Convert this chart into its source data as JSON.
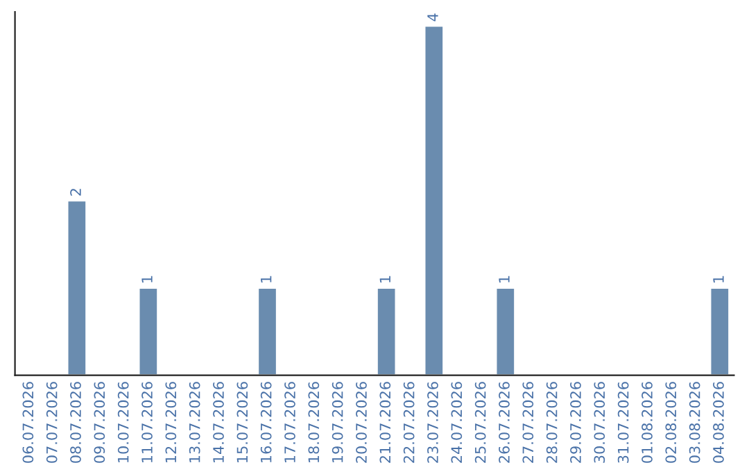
{
  "chart_data": {
    "type": "bar",
    "categories": [
      "06.07.2026",
      "07.07.2026",
      "08.07.2026",
      "09.07.2026",
      "10.07.2026",
      "11.07.2026",
      "12.07.2026",
      "13.07.2026",
      "14.07.2026",
      "15.07.2026",
      "16.07.2026",
      "17.07.2026",
      "18.07.2026",
      "19.07.2026",
      "20.07.2026",
      "21.07.2026",
      "22.07.2026",
      "23.07.2026",
      "24.07.2026",
      "25.07.2026",
      "26.07.2026",
      "27.07.2026",
      "28.07.2026",
      "29.07.2026",
      "30.07.2026",
      "31.07.2026",
      "01.08.2026",
      "02.08.2026",
      "03.08.2026",
      "04.08.2026"
    ],
    "values": [
      null,
      null,
      2,
      null,
      null,
      1,
      null,
      null,
      null,
      null,
      1,
      null,
      null,
      null,
      null,
      1,
      null,
      4,
      null,
      null,
      1,
      null,
      null,
      null,
      null,
      null,
      null,
      null,
      null,
      1
    ],
    "value_labels": [
      null,
      null,
      "2",
      null,
      null,
      "1",
      null,
      null,
      null,
      null,
      "1",
      null,
      null,
      null,
      null,
      "1",
      null,
      "4",
      null,
      null,
      "1",
      null,
      null,
      null,
      null,
      null,
      null,
      null,
      null,
      "1"
    ],
    "color": "#6a8caf",
    "grid": false,
    "legend": false
  }
}
